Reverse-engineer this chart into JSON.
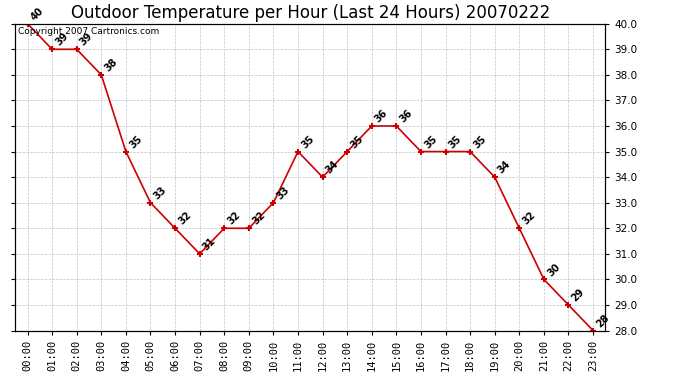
{
  "title": "Outdoor Temperature per Hour (Last 24 Hours) 20070222",
  "copyright_text": "Copyright 2007 Cartronics.com",
  "hours": [
    "00:00",
    "01:00",
    "02:00",
    "03:00",
    "04:00",
    "05:00",
    "06:00",
    "07:00",
    "08:00",
    "09:00",
    "10:00",
    "11:00",
    "12:00",
    "13:00",
    "14:00",
    "15:00",
    "16:00",
    "17:00",
    "18:00",
    "19:00",
    "20:00",
    "21:00",
    "22:00",
    "23:00"
  ],
  "temperatures": [
    40,
    39,
    39,
    38,
    35,
    33,
    32,
    31,
    32,
    32,
    33,
    35,
    34,
    35,
    36,
    36,
    35,
    35,
    35,
    34,
    32,
    30,
    29,
    28
  ],
  "ylim_min": 28.0,
  "ylim_max": 40.0,
  "line_color": "#cc0000",
  "marker_color": "#cc0000",
  "background_color": "#ffffff",
  "grid_color": "#bbbbbb",
  "title_fontsize": 12,
  "annot_fontsize": 7,
  "tick_fontsize": 7.5,
  "copyright_fontsize": 6.5
}
